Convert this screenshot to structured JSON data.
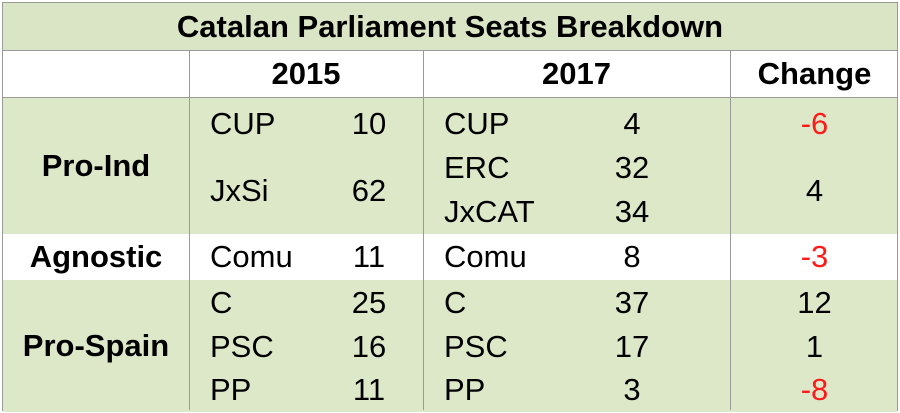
{
  "title": "Catalan Parliament Seats Breakdown",
  "headers": {
    "y2015": "2015",
    "y2017": "2017",
    "change": "Change"
  },
  "groups": [
    {
      "label": "Pro-Ind"
    },
    {
      "label": "Agnostic"
    },
    {
      "label": "Pro-Spain"
    }
  ],
  "rows_2015": [
    {
      "party": "CUP",
      "seats": "10"
    },
    {
      "party": "JxSi",
      "seats": "62"
    },
    {
      "party": "Comu",
      "seats": "11"
    },
    {
      "party": "C",
      "seats": "25"
    },
    {
      "party": "PSC",
      "seats": "16"
    },
    {
      "party": "PP",
      "seats": "11"
    }
  ],
  "rows_2017": [
    {
      "party": "CUP",
      "seats": "4"
    },
    {
      "party": "ERC",
      "seats": "32"
    },
    {
      "party": "JxCAT",
      "seats": "34"
    },
    {
      "party": "Comu",
      "seats": "8"
    },
    {
      "party": "C",
      "seats": "37"
    },
    {
      "party": "PSC",
      "seats": "17"
    },
    {
      "party": "PP",
      "seats": "3"
    }
  ],
  "changes": [
    "-6",
    "4",
    "-3",
    "12",
    "1",
    "-8"
  ],
  "colors": {
    "shade": "#dde8c9",
    "title_bg": "#d9e5c5",
    "negative": "#ff1a1a",
    "grid": "#9a9a9a"
  },
  "chart_data": {
    "type": "table",
    "title": "Catalan Parliament Seats Breakdown",
    "columns": [
      "",
      "2015",
      "",
      "2017",
      "",
      "Change"
    ],
    "rows": [
      {
        "group": "Pro-Ind",
        "party_2015": "CUP",
        "seats_2015": 10,
        "party_2017": "CUP",
        "seats_2017": 4,
        "change": -6
      },
      {
        "group": "Pro-Ind",
        "party_2015": "JxSi",
        "seats_2015": 62,
        "party_2017": [
          "ERC",
          "JxCAT"
        ],
        "seats_2017": [
          32,
          34
        ],
        "change": 4
      },
      {
        "group": "Agnostic",
        "party_2015": "Comu",
        "seats_2015": 11,
        "party_2017": "Comu",
        "seats_2017": 8,
        "change": -3
      },
      {
        "group": "Pro-Spain",
        "party_2015": "C",
        "seats_2015": 25,
        "party_2017": "C",
        "seats_2017": 37,
        "change": 12
      },
      {
        "group": "Pro-Spain",
        "party_2015": "PSC",
        "seats_2015": 16,
        "party_2017": "PSC",
        "seats_2017": 17,
        "change": 1
      },
      {
        "group": "Pro-Spain",
        "party_2015": "PP",
        "seats_2015": 11,
        "party_2017": "PP",
        "seats_2017": 3,
        "change": -8
      }
    ]
  }
}
